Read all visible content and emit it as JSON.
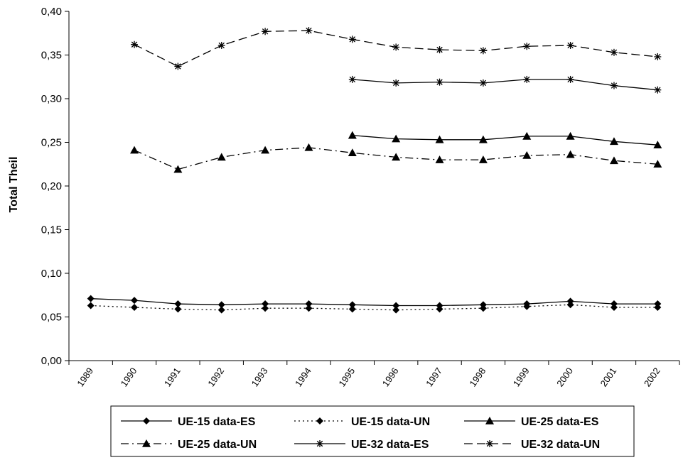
{
  "chart_data": {
    "type": "line",
    "title": "",
    "xlabel": "",
    "ylabel": "Total Theil",
    "ylim": [
      0,
      0.4
    ],
    "y_ticks": [
      "0,00",
      "0,05",
      "0,10",
      "0,15",
      "0,20",
      "0,25",
      "0,30",
      "0,35",
      "0,40"
    ],
    "categories": [
      "1989",
      "1990",
      "1991",
      "1992",
      "1993",
      "1994",
      "1995",
      "1996",
      "1997",
      "1998",
      "1999",
      "2000",
      "2001",
      "2002"
    ],
    "grid": false,
    "legend_position": "bottom",
    "series": [
      {
        "name": "UE-15 data-ES",
        "marker": "diamond",
        "dash": "solid",
        "values": [
          0.071,
          0.069,
          0.065,
          0.064,
          0.065,
          0.065,
          0.064,
          0.063,
          0.063,
          0.064,
          0.065,
          0.068,
          0.065,
          0.065
        ]
      },
      {
        "name": "UE-15 data-UN",
        "marker": "diamond",
        "dash": "dotted",
        "values": [
          0.063,
          0.061,
          0.059,
          0.058,
          0.06,
          0.06,
          0.059,
          0.058,
          0.059,
          0.06,
          0.062,
          0.064,
          0.061,
          0.061
        ]
      },
      {
        "name": "UE-25 data-ES",
        "marker": "triangle",
        "dash": "solid",
        "values": [
          null,
          null,
          null,
          null,
          null,
          null,
          0.258,
          0.254,
          0.253,
          0.253,
          0.257,
          0.257,
          0.251,
          0.247
        ]
      },
      {
        "name": "UE-25 data-UN",
        "marker": "triangle",
        "dash": "dashdot",
        "values": [
          null,
          0.241,
          0.219,
          0.233,
          0.241,
          0.244,
          0.238,
          0.233,
          0.23,
          0.23,
          0.235,
          0.236,
          0.229,
          0.225
        ]
      },
      {
        "name": "UE-32 data-ES",
        "marker": "asterisk",
        "dash": "solid",
        "values": [
          null,
          null,
          null,
          null,
          null,
          null,
          0.322,
          0.318,
          0.319,
          0.318,
          0.322,
          0.322,
          0.315,
          0.31
        ]
      },
      {
        "name": "UE-32 data-UN",
        "marker": "asterisk",
        "dash": "dashed",
        "values": [
          null,
          0.362,
          0.337,
          0.361,
          0.377,
          0.378,
          0.368,
          0.359,
          0.356,
          0.355,
          0.36,
          0.361,
          0.353,
          0.348
        ]
      }
    ]
  }
}
